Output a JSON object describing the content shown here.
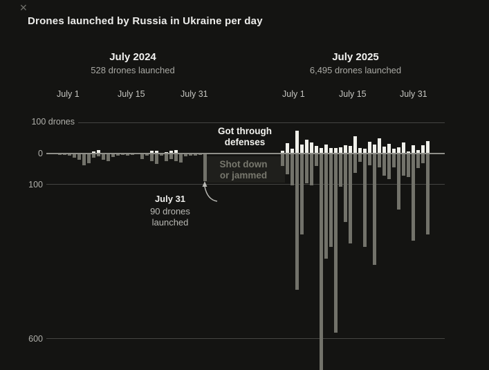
{
  "icons": {
    "close": "✕"
  },
  "title": "Drones launched by Russia in Ukraine per day",
  "axis": {
    "top": "100 drones",
    "zero": "0",
    "neg100": "100",
    "neg600": "600"
  },
  "legend": {
    "through": [
      "Got through",
      "defenses"
    ],
    "down": [
      "Shot down",
      "or jammed"
    ]
  },
  "annotation": {
    "heading": "July 31",
    "body": [
      "90 drones",
      "launched"
    ]
  },
  "colors": {
    "background": "#141412",
    "bar_got_through": "#f0f0ea",
    "bar_shot_down": "#72726a",
    "gridline": "#454542",
    "zero_line": "#8f8f89",
    "text_primary": "#ececea",
    "text_secondary": "#a9a9a4"
  },
  "chart_data": {
    "type": "bar",
    "title": "Drones launched by Russia in Ukraine per day",
    "unit": "drones per day",
    "ylabel": "drones",
    "y_gridlines": [
      100,
      0,
      -100,
      -600
    ],
    "orientation": "diverging: got-through above zero, shot-down below zero",
    "series_names": [
      "Got through defenses",
      "Shot down or jammed"
    ],
    "groups": [
      {
        "heading": "July 2024",
        "subheading": "528 drones launched",
        "total_launched": 528,
        "tick_labels": [
          "July 1",
          "July 15",
          "July 31"
        ],
        "days": 31,
        "got_through": [
          1,
          0,
          0,
          1,
          0,
          0,
          1,
          6,
          12,
          1,
          2,
          1,
          0,
          1,
          0,
          1,
          1,
          0,
          0,
          10,
          8,
          0,
          4,
          10,
          12,
          0,
          0,
          1,
          0,
          0,
          2
        ],
        "shot_down": [
          2,
          2,
          5,
          11,
          18,
          36,
          30,
          11,
          6,
          18,
          22,
          9,
          5,
          3,
          4,
          1,
          0,
          16,
          5,
          22,
          32,
          5,
          22,
          16,
          22,
          26,
          6,
          4,
          4,
          2,
          88
        ],
        "annotated_day": {
          "label": "July 31",
          "launched": 90
        }
      },
      {
        "heading": "July 2025",
        "subheading": "6,495 drones launched",
        "total_launched": 6495,
        "tick_labels": [
          "July 1",
          "July 15",
          "July 31"
        ],
        "days": 31,
        "got_through": [
          8,
          34,
          15,
          74,
          30,
          44,
          36,
          24,
          19,
          30,
          19,
          19,
          20,
          26,
          24,
          56,
          19,
          15,
          38,
          30,
          49,
          23,
          32,
          16,
          21,
          36,
          6,
          27,
          12,
          28,
          40
        ],
        "shot_down": [
          38,
          65,
          100,
          440,
          260,
          95,
          100,
          38,
          700,
          340,
          300,
          580,
          105,
          220,
          290,
          60,
          25,
          300,
          35,
          360,
          42,
          70,
          80,
          42,
          180,
          70,
          75,
          280,
          45,
          30,
          260
        ]
      }
    ]
  }
}
